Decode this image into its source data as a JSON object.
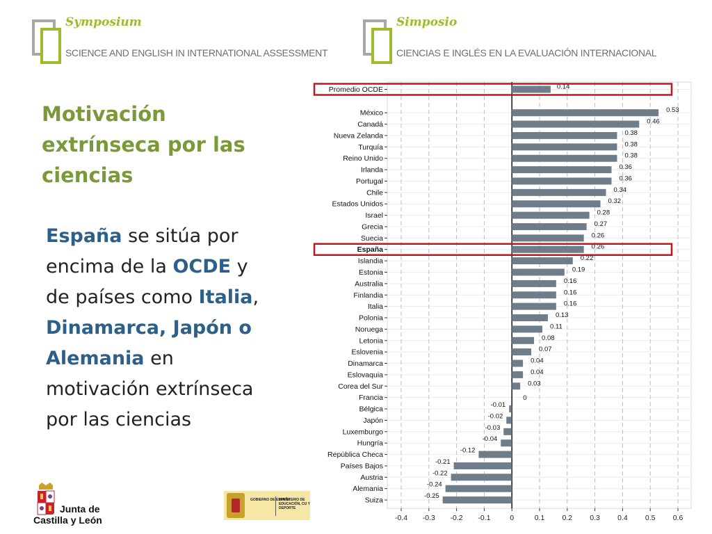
{
  "header": {
    "left": {
      "name": "Symposium",
      "subtitle": "SCIENCE AND ENGLISH IN INTERNATIONAL ASSESSMENT"
    },
    "right": {
      "name": "Simposio",
      "subtitle": "CIENCIAS E INGLÉS EN LA  EVALUACIÓN INTERNACIONAL"
    }
  },
  "slide": {
    "title": "Motivación extrínseca por las ciencias",
    "body": {
      "p1": "España",
      "p2": " se sitúa por encima de la ",
      "p3": "OCDE",
      "p4": " y de países como ",
      "p5": "Italia",
      "p6": ", ",
      "p7": "Dinamarca, Japón o Alemania",
      "p8": " en motivación extrínseca por las ciencias"
    }
  },
  "footer": {
    "cyl_line1": "Junta de",
    "cyl_line2": "Castilla y León",
    "gob_text1": "GOBIERNO DE ESPAÑA",
    "gob_text2": "MINISTERIO DE EDUCACIÓN, CU Y DEPORTE"
  },
  "colors": {
    "bar": "#6f7c8a",
    "highlight": "#c0161d",
    "accent_green": "#9cbd2a",
    "title_green": "#7a9a3a",
    "highlight_blue": "#2c5f8a"
  },
  "chart_data": {
    "type": "bar",
    "orientation": "horizontal",
    "categories": [
      "Promedio OCDE",
      "México",
      "Canadá",
      "Nueva Zelanda",
      "Turquía",
      "Reino Unido",
      "Irlanda",
      "Portugal",
      "Chile",
      "Estados Unidos",
      "Israel",
      "Grecia",
      "Suecia",
      "España",
      "Islandia",
      "Estonia",
      "Australia",
      "Finlandia",
      "Italia",
      "Polonia",
      "Noruega",
      "Letonia",
      "Eslovenia",
      "Dinamarca",
      "Eslovaquia",
      "Corea del Sur",
      "Francia",
      "Bélgica",
      "Japón",
      "Luxemburgo",
      "Hungría",
      "República Checa",
      "Países Bajos",
      "Austria",
      "Alemania",
      "Suiza"
    ],
    "values": [
      0.14,
      0.53,
      0.46,
      0.38,
      0.38,
      0.38,
      0.36,
      0.36,
      0.34,
      0.32,
      0.28,
      0.27,
      0.26,
      0.26,
      0.22,
      0.19,
      0.16,
      0.16,
      0.16,
      0.13,
      0.11,
      0.08,
      0.07,
      0.04,
      0.04,
      0.03,
      0,
      -0.01,
      -0.02,
      -0.03,
      -0.04,
      -0.12,
      -0.21,
      -0.22,
      -0.24,
      -0.25
    ],
    "value_labels": [
      "0.14",
      "0.53",
      "0.46",
      "0.38",
      "0.38",
      "0.38",
      "0.36",
      "0.36",
      "0.34",
      "0.32",
      "0.28",
      "0.27",
      "0.26",
      "0.26",
      "0.22",
      "0.19",
      "0.16",
      "0.16",
      "0.16",
      "0.13",
      "0.11",
      "0.08",
      "0.07",
      "0.04",
      "0.04",
      "0.03",
      "0",
      "-0.01",
      "-0.02",
      "-0.03",
      "-0.04",
      "-0.12",
      "-0.21",
      "-0.22",
      "-0.24",
      "-0.25"
    ],
    "xticks": [
      "-0.4",
      "-0.3",
      "-0.2",
      "-0.1",
      "0",
      "0.1",
      "0.2",
      "0.3",
      "0.4",
      "0.5",
      "0.6"
    ],
    "xlim": [
      -0.4,
      0.6
    ],
    "highlighted": [
      "Promedio OCDE",
      "España"
    ],
    "bold_labels": [
      "España"
    ],
    "grid": true
  }
}
